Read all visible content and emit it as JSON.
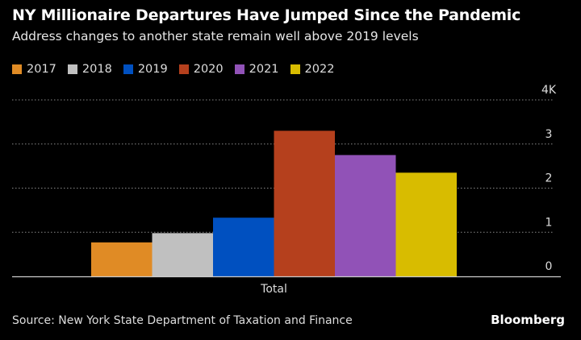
{
  "title": "NY Millionaire Departures Have Jumped Since the Pandemic",
  "subtitle": "Address changes to another state remain well above 2019 levels",
  "source": "Source: New York State Department of Taxation and Finance",
  "logo": "Bloomberg",
  "chart_data": {
    "type": "bar",
    "categories": [
      "Total"
    ],
    "series": [
      {
        "name": "2017",
        "values": [
          0.77
        ],
        "color": "#e08b25"
      },
      {
        "name": "2018",
        "values": [
          0.98
        ],
        "color": "#c0c0c0"
      },
      {
        "name": "2019",
        "values": [
          1.33
        ],
        "color": "#0050c0"
      },
      {
        "name": "2020",
        "values": [
          3.3
        ],
        "color": "#b5401d"
      },
      {
        "name": "2021",
        "values": [
          2.75
        ],
        "color": "#9152b7"
      },
      {
        "name": "2022",
        "values": [
          2.35
        ],
        "color": "#d8bc00"
      }
    ],
    "ylim": [
      0,
      4
    ],
    "yticks": [
      {
        "v": 0,
        "label": "0"
      },
      {
        "v": 1,
        "label": "1"
      },
      {
        "v": 2,
        "label": "2"
      },
      {
        "v": 3,
        "label": "3"
      },
      {
        "v": 4,
        "label": "4K"
      }
    ],
    "units": "thousands",
    "grid": true,
    "legend": "top-left"
  }
}
